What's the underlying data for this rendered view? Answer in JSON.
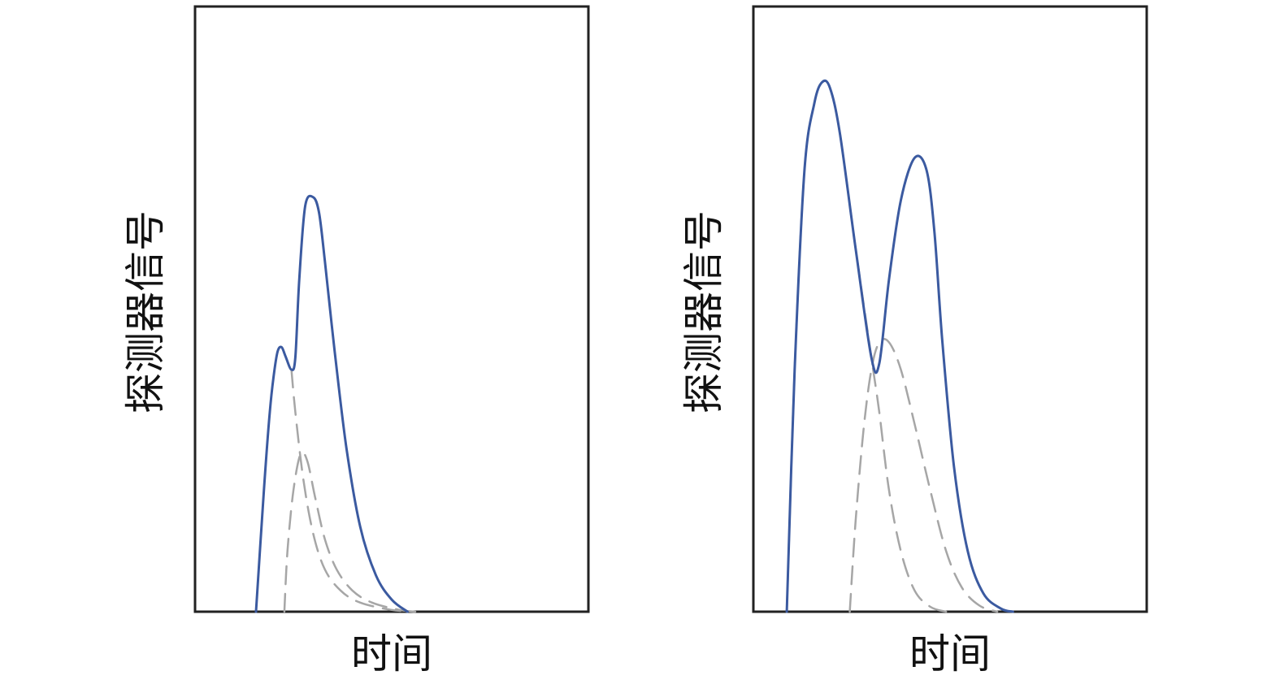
{
  "colors": {
    "total": "#3b5aa0",
    "component": "#a6a6a6",
    "frame": "#222222"
  },
  "chart_data": [
    {
      "type": "line",
      "title": "",
      "xlabel": "时间",
      "ylabel": "探测器信号",
      "xlim": [
        0,
        1
      ],
      "ylim": [
        0,
        1
      ],
      "grid": false,
      "ticks": false,
      "series": [
        {
          "style": "solid",
          "color": "#3b5aa0",
          "points": [
            [
              0.155,
              0.0
            ],
            [
              0.175,
              0.2
            ],
            [
              0.19,
              0.33
            ],
            [
              0.2,
              0.39
            ],
            [
              0.21,
              0.43
            ],
            [
              0.22,
              0.437
            ],
            [
              0.23,
              0.422
            ],
            [
              0.245,
              0.4
            ],
            [
              0.255,
              0.42
            ],
            [
              0.265,
              0.55
            ],
            [
              0.28,
              0.67
            ],
            [
              0.3,
              0.685
            ],
            [
              0.315,
              0.66
            ],
            [
              0.33,
              0.58
            ],
            [
              0.355,
              0.43
            ],
            [
              0.385,
              0.27
            ],
            [
              0.42,
              0.14
            ],
            [
              0.46,
              0.06
            ],
            [
              0.5,
              0.02
            ],
            [
              0.54,
              0.0
            ]
          ]
        },
        {
          "style": "dashed",
          "color": "#a6a6a6",
          "points": [
            [
              0.245,
              0.4
            ],
            [
              0.255,
              0.33
            ],
            [
              0.275,
              0.22
            ],
            [
              0.3,
              0.13
            ],
            [
              0.33,
              0.07
            ],
            [
              0.37,
              0.035
            ],
            [
              0.42,
              0.015
            ],
            [
              0.5,
              0.003
            ],
            [
              0.56,
              0.0
            ]
          ]
        },
        {
          "style": "dashed",
          "color": "#a6a6a6",
          "points": [
            [
              0.227,
              0.0
            ],
            [
              0.235,
              0.1
            ],
            [
              0.25,
              0.2
            ],
            [
              0.268,
              0.26
            ],
            [
              0.285,
              0.25
            ],
            [
              0.305,
              0.19
            ],
            [
              0.33,
              0.12
            ],
            [
              0.36,
              0.07
            ],
            [
              0.4,
              0.035
            ],
            [
              0.45,
              0.015
            ],
            [
              0.52,
              0.003
            ],
            [
              0.56,
              0.0
            ]
          ]
        }
      ]
    },
    {
      "type": "line",
      "title": "",
      "xlabel": "时间",
      "ylabel": "探测器信号",
      "xlim": [
        0,
        1
      ],
      "ylim": [
        0,
        1
      ],
      "grid": false,
      "ticks": false,
      "series": [
        {
          "style": "solid",
          "color": "#3b5aa0",
          "points": [
            [
              0.085,
              0.0
            ],
            [
              0.105,
              0.4
            ],
            [
              0.13,
              0.73
            ],
            [
              0.155,
              0.84
            ],
            [
              0.175,
              0.875
            ],
            [
              0.195,
              0.865
            ],
            [
              0.22,
              0.79
            ],
            [
              0.26,
              0.6
            ],
            [
              0.3,
              0.42
            ],
            [
              0.32,
              0.41
            ],
            [
              0.345,
              0.55
            ],
            [
              0.375,
              0.68
            ],
            [
              0.41,
              0.75
            ],
            [
              0.44,
              0.73
            ],
            [
              0.46,
              0.63
            ],
            [
              0.48,
              0.45
            ],
            [
              0.51,
              0.24
            ],
            [
              0.545,
              0.1
            ],
            [
              0.585,
              0.03
            ],
            [
              0.63,
              0.005
            ],
            [
              0.66,
              0.0
            ]
          ]
        },
        {
          "style": "dashed",
          "color": "#a6a6a6",
          "points": [
            [
              0.085,
              0.0
            ],
            [
              0.105,
              0.4
            ],
            [
              0.13,
              0.73
            ],
            [
              0.155,
              0.84
            ],
            [
              0.175,
              0.875
            ],
            [
              0.195,
              0.865
            ],
            [
              0.22,
              0.79
            ],
            [
              0.26,
              0.6
            ],
            [
              0.3,
              0.42
            ],
            [
              0.32,
              0.33
            ],
            [
              0.345,
              0.2
            ],
            [
              0.375,
              0.1
            ],
            [
              0.41,
              0.035
            ],
            [
              0.45,
              0.008
            ],
            [
              0.49,
              0.0
            ]
          ]
        },
        {
          "style": "dashed",
          "color": "#a6a6a6",
          "points": [
            [
              0.245,
              0.0
            ],
            [
              0.26,
              0.15
            ],
            [
              0.28,
              0.3
            ],
            [
              0.3,
              0.4
            ],
            [
              0.32,
              0.445
            ],
            [
              0.345,
              0.445
            ],
            [
              0.375,
              0.4
            ],
            [
              0.41,
              0.31
            ],
            [
              0.45,
              0.2
            ],
            [
              0.49,
              0.1
            ],
            [
              0.53,
              0.04
            ],
            [
              0.575,
              0.01
            ],
            [
              0.62,
              0.0
            ]
          ]
        }
      ]
    }
  ]
}
